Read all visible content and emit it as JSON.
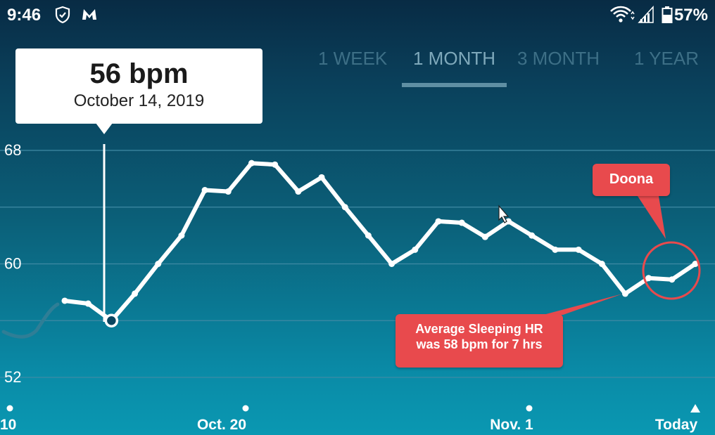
{
  "status_bar": {
    "time": "9:46",
    "battery_percent": "57%",
    "icons": [
      "shield-icon",
      "malwarebytes-icon",
      "wifi-icon",
      "signal-icon",
      "battery-icon"
    ]
  },
  "range_tabs": [
    {
      "label": "1 WEEK",
      "active": false
    },
    {
      "label": "1 MONTH",
      "active": true
    },
    {
      "label": "3 MONTH",
      "active": false
    },
    {
      "label": "1 YEAR",
      "active": false
    }
  ],
  "tooltip": {
    "value": "56 bpm",
    "date": "October 14, 2019"
  },
  "annotations": {
    "doona": "Doona",
    "sleep_line1": "Average Sleeping HR",
    "sleep_line2": "was 58 bpm for 7 hrs"
  },
  "colors": {
    "line": "#ffffff",
    "callout": "#e84a4d",
    "grid": "#3f8aa5",
    "faded_line": "#2f7e96"
  },
  "chart_data": {
    "type": "line",
    "title": "",
    "xlabel": "",
    "ylabel": "",
    "ylim": [
      52,
      68
    ],
    "y_ticks": [
      "52",
      "60",
      "68"
    ],
    "x_tick_labels": [
      "10",
      "Oct. 20",
      "Nov. 1",
      "Today"
    ],
    "grid": true,
    "series": [
      {
        "values": [
          57.4,
          57.2,
          56.0,
          57.9,
          60.0,
          62.0,
          65.2,
          65.1,
          67.1,
          67.0,
          65.1,
          66.1,
          64.0,
          62.0,
          60.0,
          61.0,
          63.0,
          62.9,
          61.9,
          63.0,
          62.0,
          61.0,
          61.0,
          60.0,
          57.9,
          59.0,
          58.9,
          60.0
        ]
      }
    ],
    "highlighted_point": {
      "index": 2,
      "value": 56,
      "date": "October 14, 2019"
    },
    "annotated_points": [
      {
        "index": 24,
        "note": "Average Sleeping HR was 58 bpm for 7 hrs"
      },
      {
        "range": [
          25,
          27
        ],
        "note": "Doona"
      }
    ]
  }
}
